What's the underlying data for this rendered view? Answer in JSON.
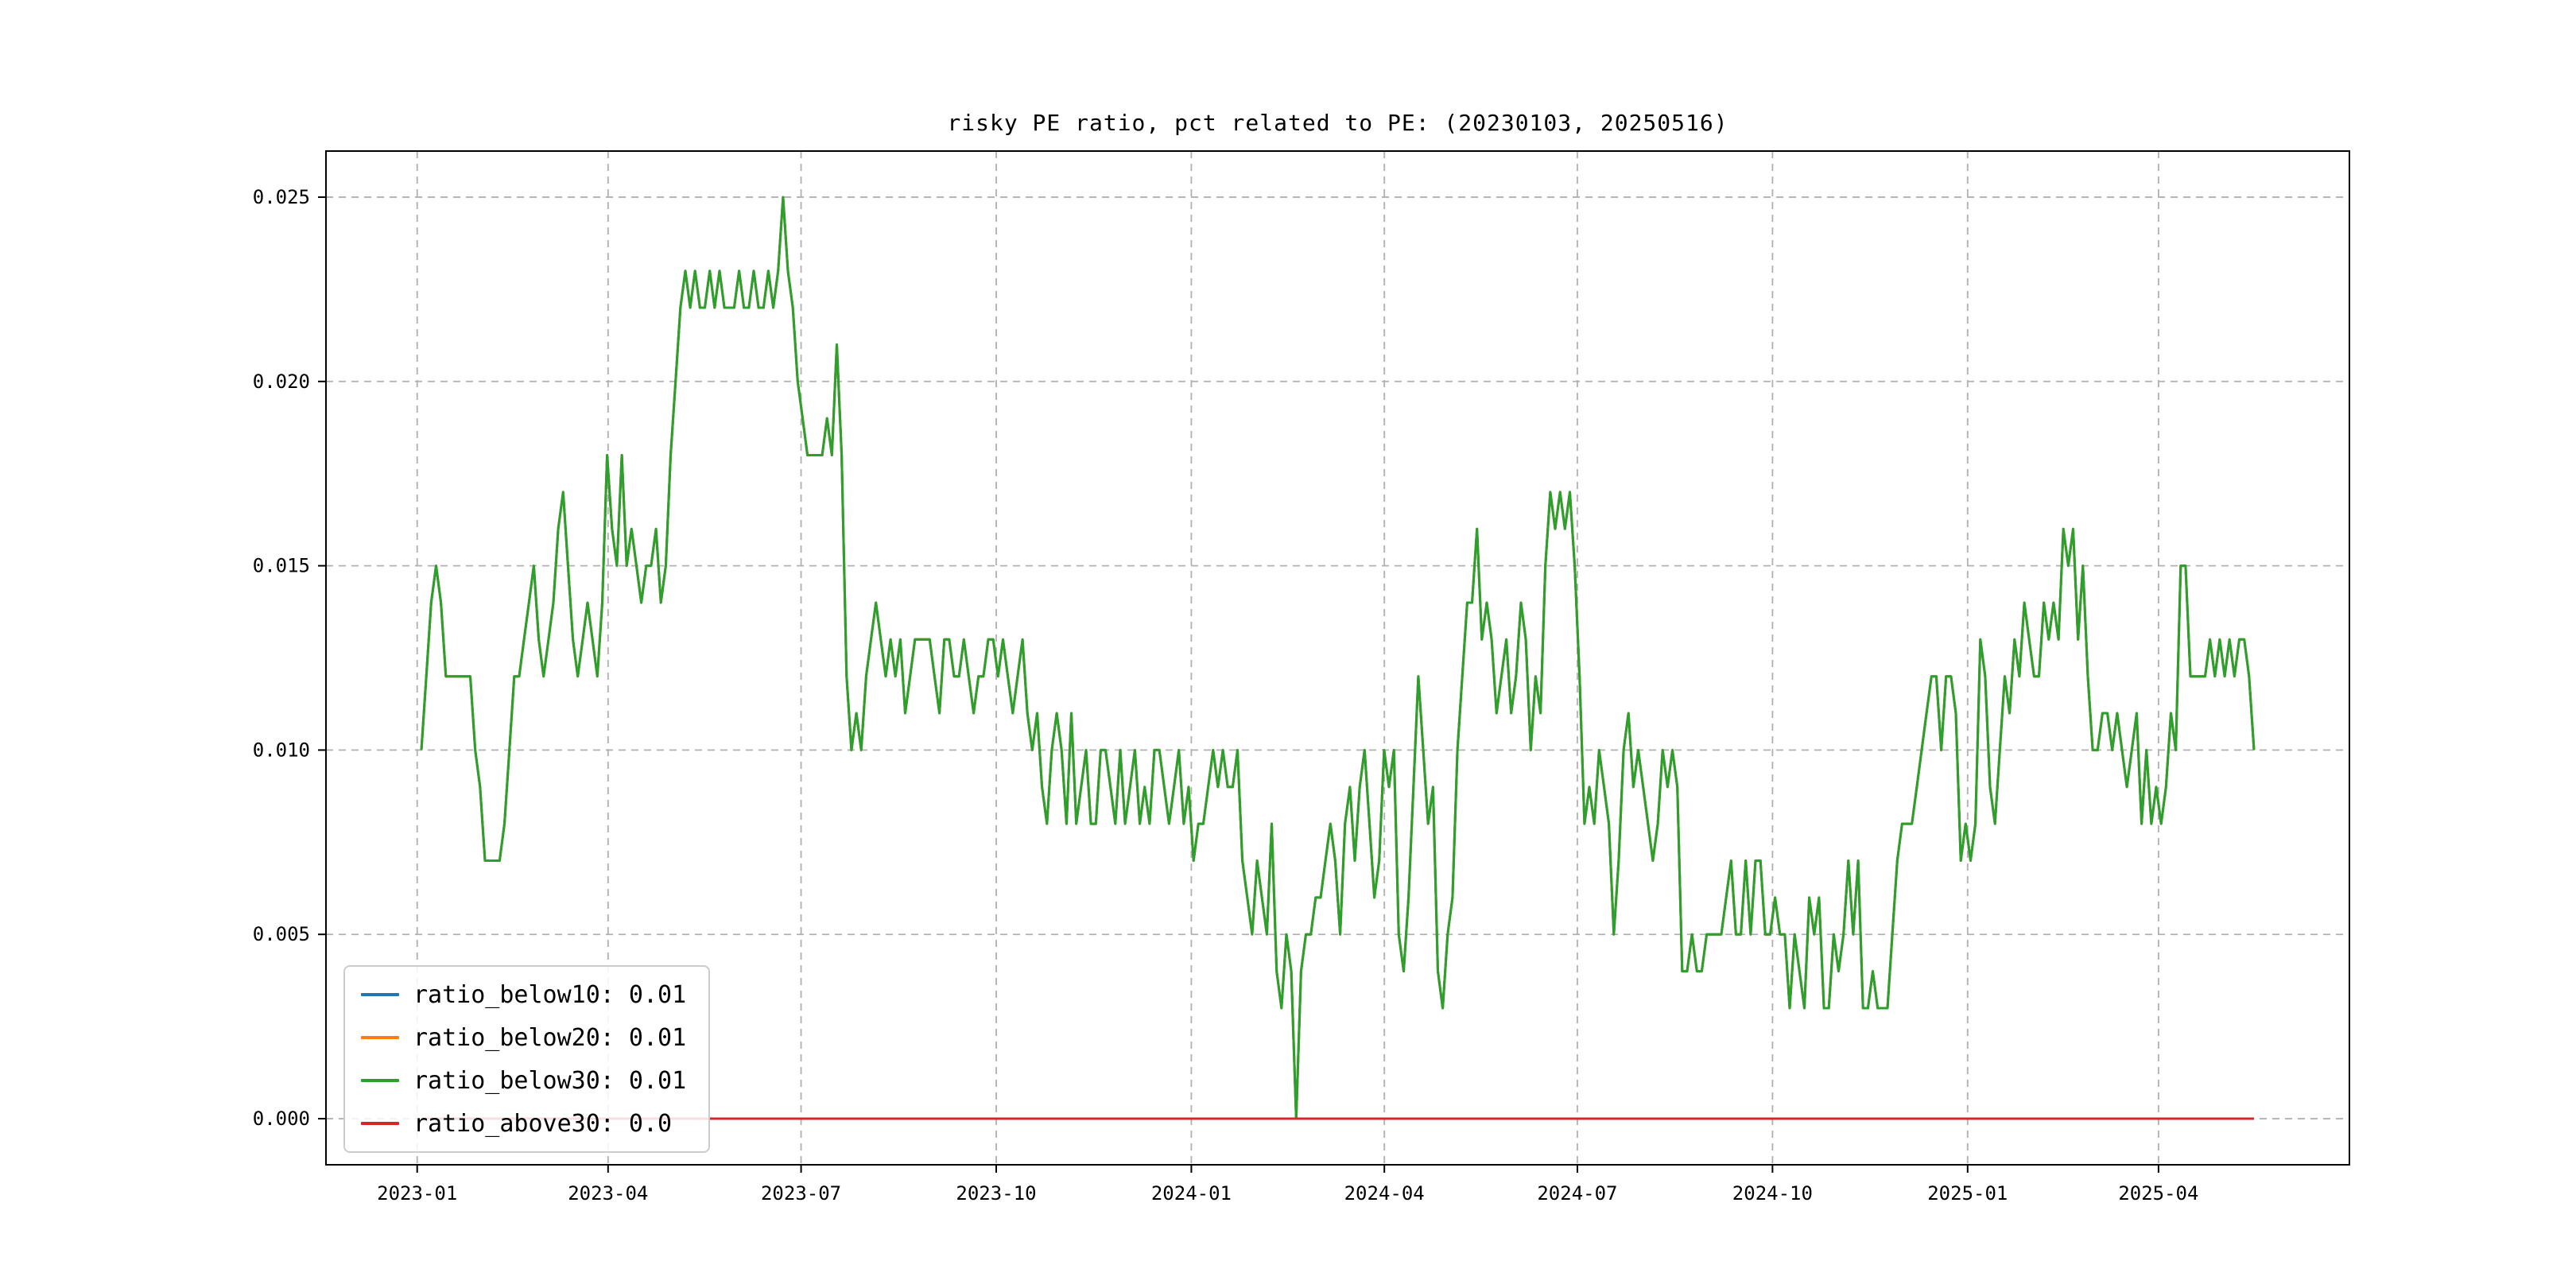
{
  "title": "risky PE ratio, pct related to PE: (20230103, 20250516)",
  "colors": {
    "background": "#ffffff",
    "grid": "#b0b0b0",
    "spine": "#000000",
    "blue": "#1f77b4",
    "orange": "#ff7f0e",
    "green": "#2ca02c",
    "red": "#d62728"
  },
  "legend": {
    "position": "lower left",
    "entries": [
      {
        "label": "ratio_below10: 0.01",
        "color": "#1f77b4"
      },
      {
        "label": "ratio_below20: 0.01",
        "color": "#ff7f0e"
      },
      {
        "label": "ratio_below30: 0.01",
        "color": "#2ca02c"
      },
      {
        "label": "ratio_above30: 0.0",
        "color": "#d62728"
      }
    ]
  },
  "chart_data": {
    "type": "line",
    "title": "risky PE ratio, pct related to PE: (20230103, 20250516)",
    "xlabel": "",
    "ylabel": "",
    "grid": "dashed",
    "legend_position": "lower left",
    "date_range": [
      "2023-01-03",
      "2025-05-16"
    ],
    "x_tick_labels": [
      "2023-01",
      "2023-04",
      "2023-07",
      "2023-10",
      "2024-01",
      "2024-04",
      "2024-07",
      "2024-10",
      "2025-01",
      "2025-04"
    ],
    "x_tick_day_offsets": [
      -2,
      88,
      179,
      271,
      363,
      454,
      545,
      637,
      729,
      819
    ],
    "x_axis": {
      "data_start": 0,
      "data_end": 864,
      "min": -45,
      "max": 909
    },
    "y_ticks": [
      0.0,
      0.005,
      0.01,
      0.015,
      0.02,
      0.025
    ],
    "y_tick_labels": [
      "0.000",
      "0.005",
      "0.010",
      "0.015",
      "0.020",
      "0.025"
    ],
    "ylim": [
      -0.00125,
      0.02625
    ],
    "series": [
      {
        "name": "ratio_below10",
        "color": "#1f77b4",
        "final_value": 0.01,
        "values_same_as": "ratio_below30",
        "note": "coincides with ratio_below30, hidden underneath"
      },
      {
        "name": "ratio_below20",
        "color": "#ff7f0e",
        "final_value": 0.01,
        "values_same_as": "ratio_below30",
        "note": "coincides with ratio_below30, hidden underneath"
      },
      {
        "name": "ratio_below30",
        "color": "#2ca02c",
        "final_value": 0.01,
        "values": [
          0.01,
          0.012,
          0.014,
          0.015,
          0.014,
          0.012,
          0.012,
          0.012,
          0.012,
          0.012,
          0.012,
          0.01,
          0.009,
          0.007,
          0.007,
          0.007,
          0.007,
          0.008,
          0.01,
          0.012,
          0.012,
          0.013,
          0.014,
          0.015,
          0.013,
          0.012,
          0.013,
          0.014,
          0.016,
          0.017,
          0.015,
          0.013,
          0.012,
          0.013,
          0.014,
          0.013,
          0.012,
          0.014,
          0.018,
          0.016,
          0.015,
          0.018,
          0.015,
          0.016,
          0.015,
          0.014,
          0.015,
          0.015,
          0.016,
          0.014,
          0.015,
          0.018,
          0.02,
          0.022,
          0.023,
          0.022,
          0.023,
          0.022,
          0.022,
          0.023,
          0.022,
          0.023,
          0.022,
          0.022,
          0.022,
          0.023,
          0.022,
          0.022,
          0.023,
          0.022,
          0.022,
          0.023,
          0.022,
          0.023,
          0.025,
          0.023,
          0.022,
          0.02,
          0.019,
          0.018,
          0.018,
          0.018,
          0.018,
          0.019,
          0.018,
          0.021,
          0.018,
          0.012,
          0.01,
          0.011,
          0.01,
          0.012,
          0.013,
          0.014,
          0.013,
          0.012,
          0.013,
          0.012,
          0.013,
          0.011,
          0.012,
          0.013,
          0.013,
          0.013,
          0.013,
          0.012,
          0.011,
          0.013,
          0.013,
          0.012,
          0.012,
          0.013,
          0.012,
          0.011,
          0.012,
          0.012,
          0.013,
          0.013,
          0.012,
          0.013,
          0.012,
          0.011,
          0.012,
          0.013,
          0.011,
          0.01,
          0.011,
          0.009,
          0.008,
          0.01,
          0.011,
          0.01,
          0.008,
          0.011,
          0.008,
          0.009,
          0.01,
          0.008,
          0.008,
          0.01,
          0.01,
          0.009,
          0.008,
          0.01,
          0.008,
          0.009,
          0.01,
          0.008,
          0.009,
          0.008,
          0.01,
          0.01,
          0.009,
          0.008,
          0.009,
          0.01,
          0.008,
          0.009,
          0.007,
          0.008,
          0.008,
          0.009,
          0.01,
          0.009,
          0.01,
          0.009,
          0.009,
          0.01,
          0.007,
          0.006,
          0.005,
          0.007,
          0.006,
          0.005,
          0.008,
          0.004,
          0.003,
          0.005,
          0.004,
          0.0,
          0.004,
          0.005,
          0.005,
          0.006,
          0.006,
          0.007,
          0.008,
          0.007,
          0.005,
          0.008,
          0.009,
          0.007,
          0.009,
          0.01,
          0.008,
          0.006,
          0.007,
          0.01,
          0.009,
          0.01,
          0.005,
          0.004,
          0.006,
          0.009,
          0.012,
          0.01,
          0.008,
          0.009,
          0.004,
          0.003,
          0.005,
          0.006,
          0.01,
          0.012,
          0.014,
          0.014,
          0.016,
          0.013,
          0.014,
          0.013,
          0.011,
          0.012,
          0.013,
          0.011,
          0.012,
          0.014,
          0.013,
          0.01,
          0.012,
          0.011,
          0.015,
          0.017,
          0.016,
          0.017,
          0.016,
          0.017,
          0.015,
          0.012,
          0.008,
          0.009,
          0.008,
          0.01,
          0.009,
          0.008,
          0.005,
          0.007,
          0.01,
          0.011,
          0.009,
          0.01,
          0.009,
          0.008,
          0.007,
          0.008,
          0.01,
          0.009,
          0.01,
          0.009,
          0.004,
          0.004,
          0.005,
          0.004,
          0.004,
          0.005,
          0.005,
          0.005,
          0.005,
          0.006,
          0.007,
          0.005,
          0.005,
          0.007,
          0.005,
          0.007,
          0.007,
          0.005,
          0.005,
          0.006,
          0.005,
          0.005,
          0.003,
          0.005,
          0.004,
          0.003,
          0.006,
          0.005,
          0.006,
          0.003,
          0.003,
          0.005,
          0.004,
          0.005,
          0.007,
          0.005,
          0.007,
          0.003,
          0.003,
          0.004,
          0.003,
          0.003,
          0.003,
          0.005,
          0.007,
          0.008,
          0.008,
          0.008,
          0.009,
          0.01,
          0.011,
          0.012,
          0.012,
          0.01,
          0.012,
          0.012,
          0.011,
          0.007,
          0.008,
          0.007,
          0.008,
          0.013,
          0.012,
          0.009,
          0.008,
          0.01,
          0.012,
          0.011,
          0.013,
          0.012,
          0.014,
          0.013,
          0.012,
          0.012,
          0.014,
          0.013,
          0.014,
          0.013,
          0.016,
          0.015,
          0.016,
          0.013,
          0.015,
          0.012,
          0.01,
          0.01,
          0.011,
          0.011,
          0.01,
          0.011,
          0.01,
          0.009,
          0.01,
          0.011,
          0.008,
          0.01,
          0.008,
          0.009,
          0.008,
          0.009,
          0.011,
          0.01,
          0.015,
          0.015,
          0.012,
          0.012,
          0.012,
          0.012,
          0.013,
          0.012,
          0.013,
          0.012,
          0.013,
          0.012,
          0.013,
          0.013,
          0.012,
          0.01
        ]
      },
      {
        "name": "ratio_above30",
        "color": "#d62728",
        "final_value": 0.0,
        "constant": 0.0
      }
    ]
  }
}
